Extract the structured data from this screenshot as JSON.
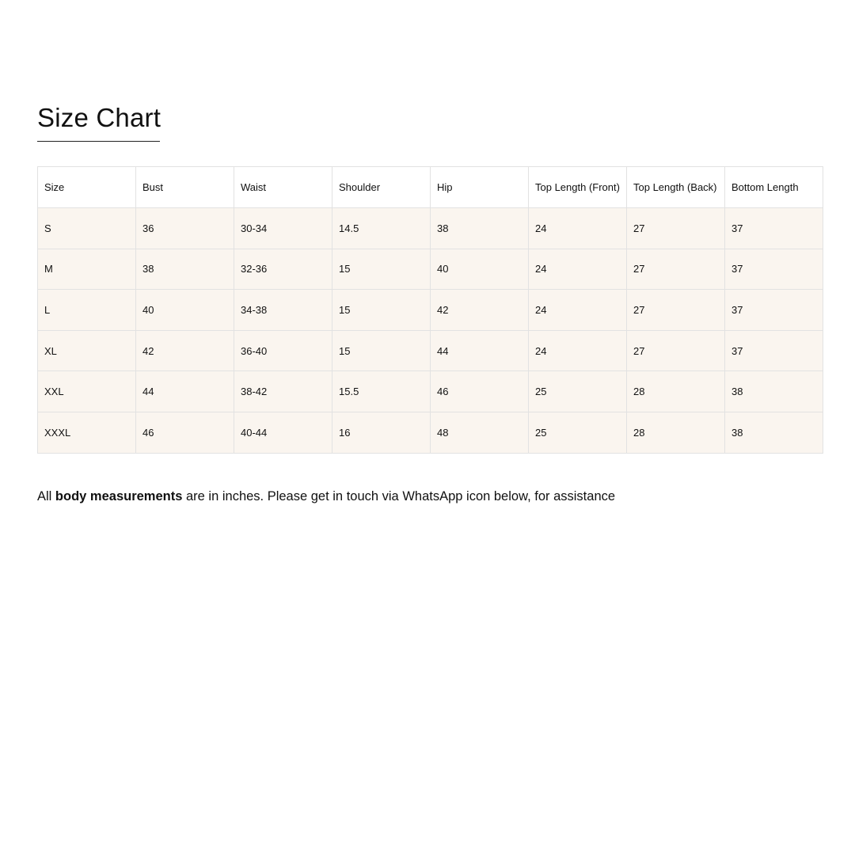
{
  "title": "Size Chart",
  "table": {
    "headers": [
      "Size",
      "Bust",
      "Waist",
      "Shoulder",
      "Hip",
      "Top Length (Front)",
      "Top Length (Back)",
      "Bottom Length"
    ],
    "rows": [
      [
        "S",
        "36",
        "30-34",
        "14.5",
        "38",
        "24",
        "27",
        "37"
      ],
      [
        "M",
        "38",
        "32-36",
        "15",
        "40",
        "24",
        "27",
        "37"
      ],
      [
        "L",
        "40",
        "34-38",
        "15",
        "42",
        "24",
        "27",
        "37"
      ],
      [
        "XL",
        "42",
        "36-40",
        "15",
        "44",
        "24",
        "27",
        "37"
      ],
      [
        "XXL",
        "44",
        "38-42",
        "15.5",
        "46",
        "25",
        "28",
        "38"
      ],
      [
        "XXXL",
        "46",
        "40-44",
        "16",
        "48",
        "25",
        "28",
        "38"
      ]
    ]
  },
  "note": {
    "prefix": "All ",
    "bold": "body measurements",
    "suffix": " are in inches. Please get in touch via WhatsApp icon below, for assistance"
  },
  "colors": {
    "row_bg": "#faf5ef",
    "border": "#e2e2e2"
  }
}
